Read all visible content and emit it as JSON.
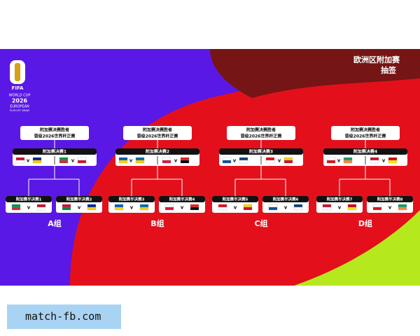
{
  "header": {
    "title": "欧洲区附加赛",
    "subtitle": "抽签"
  },
  "logo": {
    "brand": "FIFA",
    "line1": "WORLD CUP",
    "year": "2026",
    "line3": "EUROPEAN",
    "line4": "PLAY-OFF DRAW"
  },
  "vs": "v",
  "groups": [
    {
      "winner": [
        "附加赛决赛胜者",
        "晋级2026世界杯正赛"
      ],
      "final": "附加赛决赛1",
      "semis": [
        "附加赛半决赛1",
        "附加赛半决赛2"
      ],
      "label": "A组"
    },
    {
      "winner": [
        "附加赛决赛胜者",
        "晋级2026世界杯正赛"
      ],
      "final": "附加赛决赛2",
      "semis": [
        "附加赛半决赛3",
        "附加赛半决赛4"
      ],
      "label": "B组"
    },
    {
      "winner": [
        "附加赛决赛胜者",
        "晋级2026世界杯正赛"
      ],
      "final": "附加赛决赛3",
      "semis": [
        "附加赛半决赛5",
        "附加赛半决赛6"
      ],
      "label": "C组"
    },
    {
      "winner": [
        "附加赛决赛胜者",
        "晋级2026世界杯正赛"
      ],
      "final": "附加赛决赛4",
      "semis": [
        "附加赛半决赛7",
        "附加赛半决赛8"
      ],
      "label": "D组"
    }
  ],
  "footer": "match-fb.com"
}
